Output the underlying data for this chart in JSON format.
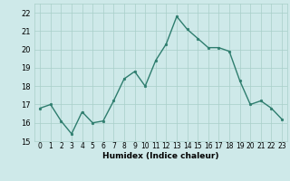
{
  "x": [
    0,
    1,
    2,
    3,
    4,
    5,
    6,
    7,
    8,
    9,
    10,
    11,
    12,
    13,
    14,
    15,
    16,
    17,
    18,
    19,
    20,
    21,
    22,
    23
  ],
  "y": [
    16.8,
    17.0,
    16.1,
    15.4,
    16.6,
    16.0,
    16.1,
    17.2,
    18.4,
    18.8,
    18.0,
    19.4,
    20.3,
    21.8,
    21.1,
    20.6,
    20.1,
    20.1,
    19.9,
    18.3,
    17.0,
    17.2,
    16.8,
    16.2
  ],
  "line_color": "#2e7d6e",
  "marker": "o",
  "marker_size": 1.8,
  "line_width": 1.0,
  "bg_color": "#cee9e9",
  "grid_color": "#a8cfc8",
  "xlabel": "Humidex (Indice chaleur)",
  "xlabel_fontsize": 6.5,
  "ylabel_fontsize": 6,
  "tick_fontsize": 5.5,
  "ylim": [
    15,
    22.5
  ],
  "yticks": [
    15,
    16,
    17,
    18,
    19,
    20,
    21,
    22
  ],
  "xlim": [
    -0.5,
    23.5
  ]
}
